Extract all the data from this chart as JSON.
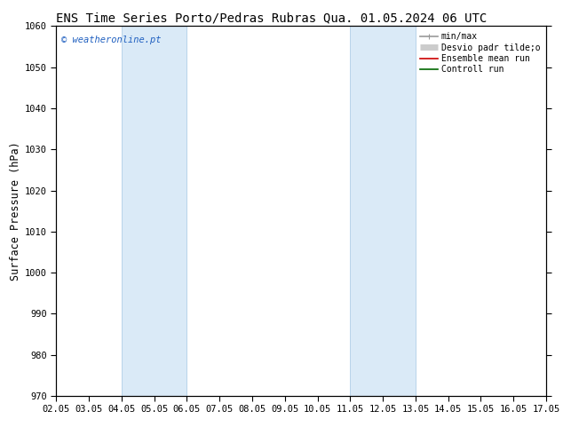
{
  "title_left": "ENS Time Series Porto/Pedras Rubras",
  "title_right": "Qua. 01.05.2024 06 UTC",
  "ylabel": "Surface Pressure (hPa)",
  "ylim": [
    970,
    1060
  ],
  "yticks": [
    970,
    980,
    990,
    1000,
    1010,
    1020,
    1030,
    1040,
    1050,
    1060
  ],
  "xtick_labels": [
    "02.05",
    "03.05",
    "04.05",
    "05.05",
    "06.05",
    "07.05",
    "08.05",
    "09.05",
    "10.05",
    "11.05",
    "12.05",
    "13.05",
    "14.05",
    "15.05",
    "16.05",
    "17.05"
  ],
  "shaded_regions": [
    {
      "xstart": 2,
      "xend": 4,
      "color": "#daeaf7"
    },
    {
      "xstart": 9,
      "xend": 11,
      "color": "#daeaf7"
    }
  ],
  "shade_edge_color": "#b8d4ea",
  "watermark": "© weatheronline.pt",
  "watermark_color": "#2060c0",
  "legend_entries": [
    {
      "label": "min/max",
      "color": "#999999",
      "lw": 1.2,
      "type": "errbar"
    },
    {
      "label": "Desvio padr tilde;o",
      "color": "#cccccc",
      "lw": 5,
      "type": "thick"
    },
    {
      "label": "Ensemble mean run",
      "color": "#cc0000",
      "lw": 1.2,
      "type": "line"
    },
    {
      "label": "Controll run",
      "color": "#006600",
      "lw": 1.2,
      "type": "line"
    }
  ],
  "bg_color": "#ffffff",
  "tick_label_fontsize": 7.5,
  "title_fontsize": 10,
  "ylabel_fontsize": 8.5
}
